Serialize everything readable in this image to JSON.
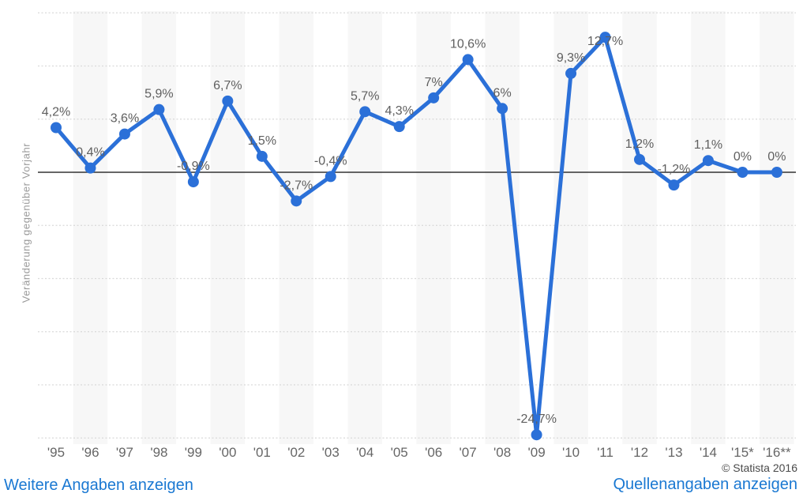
{
  "chart_data": {
    "type": "line",
    "title": "",
    "ylabel": "Veränderung gegenüber Vorjahr",
    "xlabel": "",
    "categories": [
      "'95",
      "'96",
      "'97",
      "'98",
      "'99",
      "'00",
      "'01",
      "'02",
      "'03",
      "'04",
      "'05",
      "'06",
      "'07",
      "'08",
      "'09",
      "'10",
      "'11",
      "'12",
      "'13",
      "'14",
      "'15*",
      "'16**"
    ],
    "values": [
      4.2,
      0.4,
      3.6,
      5.9,
      -0.9,
      6.7,
      1.5,
      -2.7,
      -0.4,
      5.7,
      4.3,
      7,
      10.6,
      6,
      -24.7,
      9.3,
      12.7,
      1.2,
      -1.2,
      1.1,
      0,
      0
    ],
    "point_labels": [
      "4,2%",
      "0,4%",
      "3,6%",
      "5,9%",
      "-0,9%",
      "6,7%",
      "1,5%",
      "-2,7%",
      "-0,4%",
      "5,7%",
      "4,3%",
      "7%",
      "10,6%",
      "6%",
      "-24,7%",
      "9,3%",
      "12,7%",
      "1,2%",
      "-1,2%",
      "1,1%",
      "0%",
      "0%"
    ],
    "ylim": [
      -26,
      16
    ],
    "gridlines_pct": [
      15,
      10,
      5,
      0,
      -5,
      -10,
      -15,
      -20,
      -25
    ],
    "grid": "dotted horizontal, solid zero line, alternating vertical stripes",
    "legend": "none",
    "colors": {
      "line": "#2b70d8",
      "zero_line": "#333333",
      "gridline": "#d9d9d9",
      "stripe": "#f7f7f7",
      "point_label": "#5f5f5f",
      "axis_tick_label": "#666666"
    }
  },
  "footer": {
    "left_link": "Weitere Angaben anzeigen",
    "right_link": "Quellenangaben anzeigen",
    "copyright": "© Statista 2016"
  }
}
